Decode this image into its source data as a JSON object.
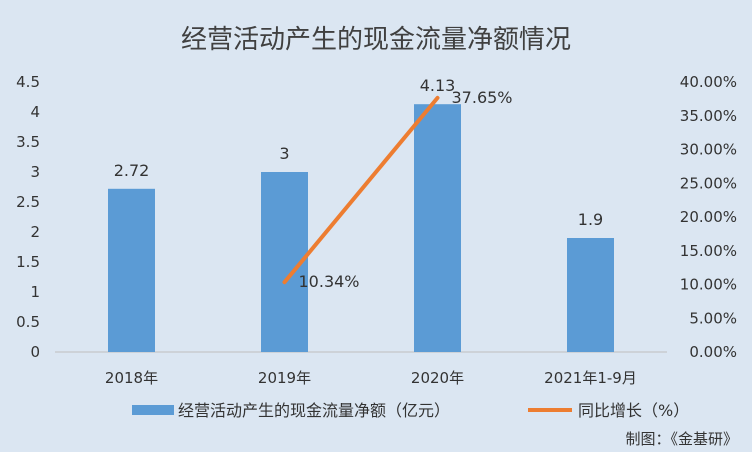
{
  "chart_data": {
    "type": "bar",
    "title": "经营活动产生的现金流量净额情况",
    "categories": [
      "2018年",
      "2019年",
      "2020年",
      "2021年1-9月"
    ],
    "series": [
      {
        "name": "经营活动产生的现金流量净额（亿元）",
        "type": "bar",
        "axis": "left",
        "color": "#5b9bd5",
        "values": [
          2.72,
          3,
          4.13,
          1.9
        ],
        "labels": [
          "2.72",
          "3",
          "4.13",
          "1.9"
        ]
      },
      {
        "name": "同比增长（%）",
        "type": "line",
        "axis": "right",
        "color": "#ed7d31",
        "values": [
          null,
          10.34,
          37.65,
          null
        ],
        "labels": [
          "",
          "10.34%",
          "37.65%",
          ""
        ]
      }
    ],
    "y_left": {
      "min": 0,
      "max": 4.5,
      "ticks": [
        0,
        0.5,
        1,
        1.5,
        2,
        2.5,
        3,
        3.5,
        4,
        4.5
      ],
      "tick_labels": [
        "0",
        "0.5",
        "1",
        "1.5",
        "2",
        "2.5",
        "3",
        "3.5",
        "4",
        "4.5"
      ]
    },
    "y_right": {
      "min": 0,
      "max": 40,
      "ticks": [
        0,
        5,
        10,
        15,
        20,
        25,
        30,
        35,
        40
      ],
      "tick_labels": [
        "0.00%",
        "5.00%",
        "10.00%",
        "15.00%",
        "20.00%",
        "25.00%",
        "30.00%",
        "35.00%",
        "40.00%"
      ]
    },
    "grid": false,
    "legend_position": "bottom",
    "background_color": "#dbe6f2"
  },
  "credit": "制图：《金基研》"
}
